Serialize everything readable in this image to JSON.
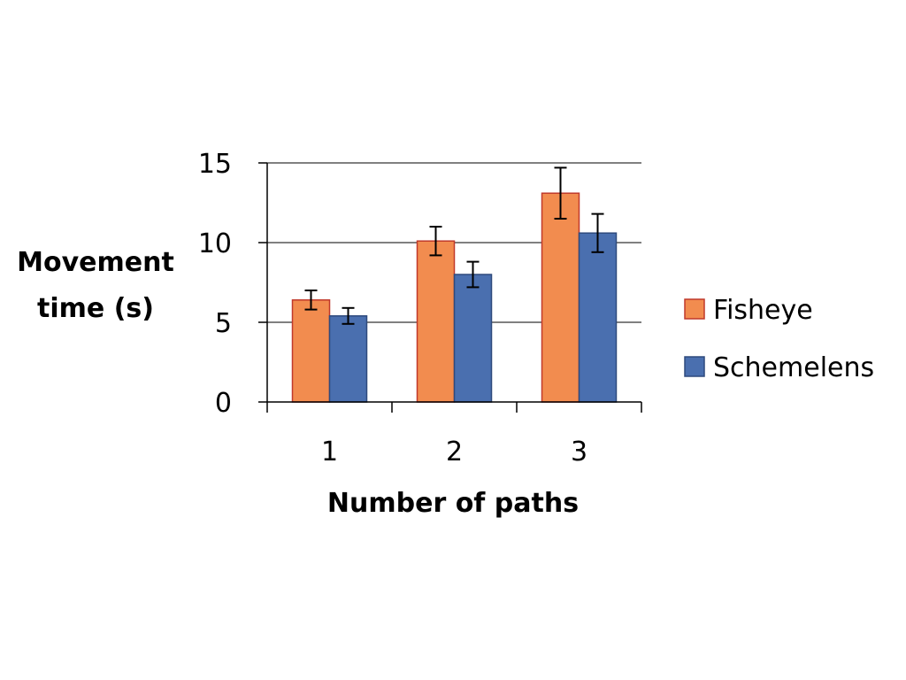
{
  "chart_data": {
    "type": "bar",
    "xlabel": "Number of paths",
    "ylabel_lines": [
      "Movement",
      "time (s)"
    ],
    "categories": [
      "1",
      "2",
      "3"
    ],
    "ylim": [
      0,
      15
    ],
    "yticks": [
      "0",
      "5",
      "10",
      "15"
    ],
    "grid": true,
    "legend_position": "right",
    "series": [
      {
        "name": "Fisheye",
        "color": "#F28C4F",
        "border": "#C0392B",
        "values": [
          6.4,
          10.1,
          13.1
        ],
        "errors": [
          0.6,
          0.9,
          1.6
        ]
      },
      {
        "name": "Schemelens",
        "color": "#4A6FAF",
        "border": "#2E4A7D",
        "values": [
          5.4,
          8.0,
          10.6
        ],
        "errors": [
          0.5,
          0.8,
          1.2
        ]
      }
    ]
  }
}
